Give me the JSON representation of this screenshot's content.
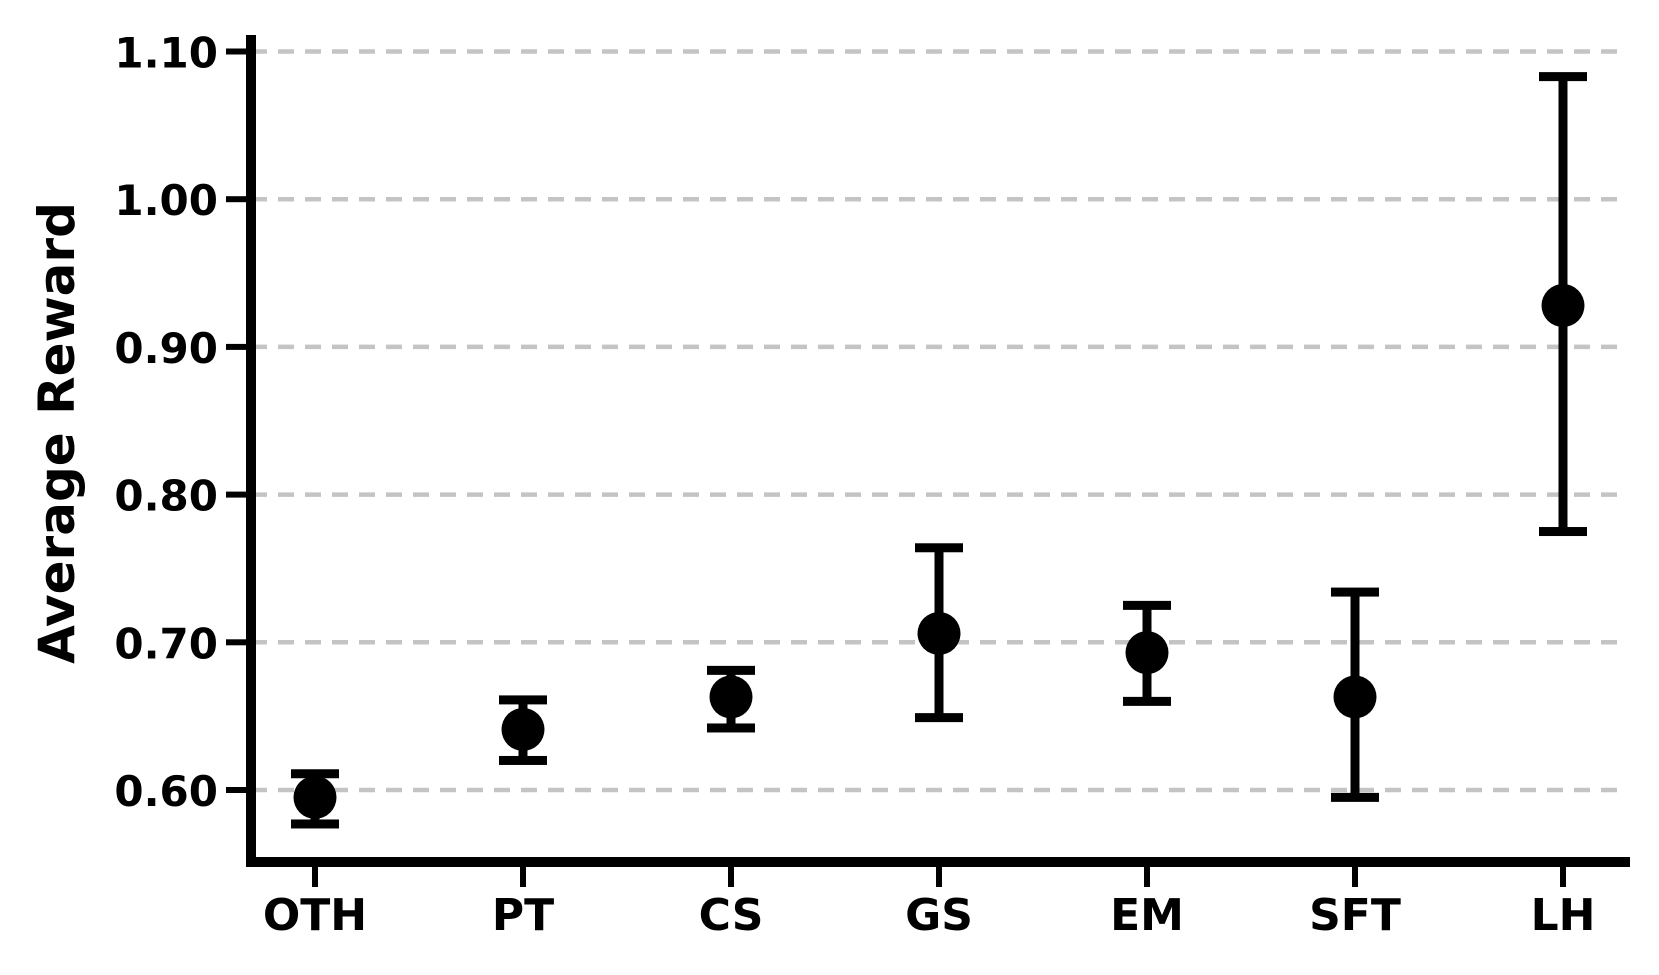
{
  "chart_data": {
    "type": "scatter",
    "title": "",
    "xlabel": "",
    "ylabel": "Average Reward",
    "categories": [
      "OTH",
      "PT",
      "CS",
      "GS",
      "EM",
      "SFT",
      "LH"
    ],
    "series": [
      {
        "name": "Average Reward",
        "values": [
          0.595,
          0.641,
          0.663,
          0.706,
          0.693,
          0.663,
          0.928
        ],
        "error_low": [
          0.577,
          0.62,
          0.642,
          0.649,
          0.66,
          0.595,
          0.775
        ],
        "error_high": [
          0.611,
          0.661,
          0.681,
          0.764,
          0.725,
          0.734,
          1.083
        ]
      }
    ],
    "ytick_labels": [
      "0.60",
      "0.70",
      "0.80",
      "0.90",
      "1.00",
      "1.10"
    ],
    "ytick_values": [
      0.6,
      0.7,
      0.8,
      0.9,
      1.0,
      1.1
    ],
    "ylim": [
      0.551,
      1.111
    ],
    "grid": "horizontal-dashed",
    "legend_position": "none",
    "marker": "circle",
    "colors": {
      "points": "#000000",
      "error_bars": "#000000",
      "axes": "#000000",
      "gridlines": "#c4c4c4",
      "background": "#ffffff"
    }
  }
}
